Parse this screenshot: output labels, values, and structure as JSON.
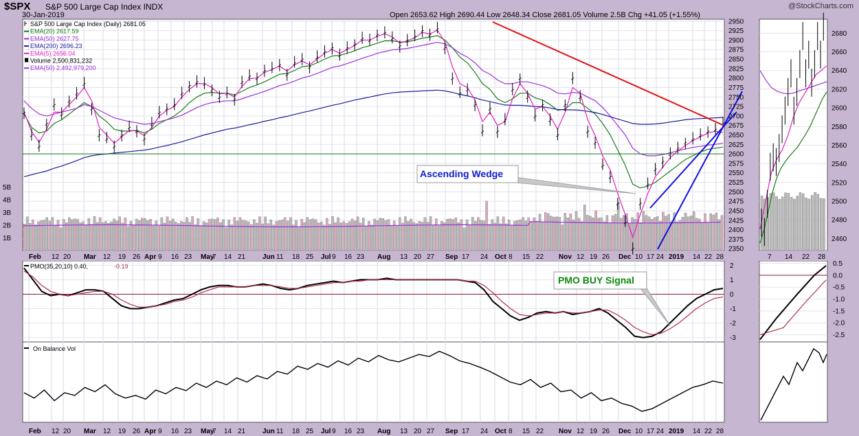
{
  "header": {
    "symbol": "$SPX",
    "name": "S&P 500 Large Cap Index",
    "exchange": "INDX",
    "date": "30-Jan-2019",
    "ohlc": "Open 2653.62  High 2690.44  Low 2648.34  Close 2681.05  Volume 2.5B  Chg +41.05 (+1.55%)",
    "credit": "@StockCharts.com"
  },
  "legends": {
    "price": [
      {
        "text": "S&P 500 Large Cap Index (Daily) 2681.05",
        "color": "#000000",
        "marker": "bar"
      },
      {
        "text": "EMA(20) 2617.59",
        "color": "#1a7a1a",
        "marker": "line"
      },
      {
        "text": "EMA(50) 2627.75",
        "color": "#9b30d9",
        "marker": "line"
      },
      {
        "text": "EMA(200) 2696.23",
        "color": "#1c1c9c",
        "marker": "line"
      },
      {
        "text": "EMA(5) 2656.04",
        "color": "#e020c0",
        "marker": "line"
      },
      {
        "text": "Volume 2,500,831,232",
        "color": "#000000",
        "marker": "block"
      },
      {
        "text": "EMA(50) 2,492,979,200",
        "color": "#9b30d9",
        "marker": "line"
      }
    ],
    "pmo_label": "PMO(35,20,10)",
    "pmo_value": "0.40,",
    "pmo_signal": "-0.19",
    "obv": "On Balance Vol"
  },
  "annotations": {
    "wedge": "Ascending Wedge",
    "pmo_buy": "PMO BUY Signal"
  },
  "chart_data": [
    {
      "type": "line",
      "panel": "price-daily",
      "title": "S&P 500 Large Cap Index (Daily) 2681.05",
      "ylim": [
        2345,
        2955
      ],
      "y_ticks": [
        2950,
        2925,
        2900,
        2875,
        2850,
        2825,
        2800,
        2775,
        2750,
        2725,
        2700,
        2675,
        2650,
        2625,
        2600,
        2575,
        2550,
        2525,
        2500,
        2475,
        2450,
        2425,
        2400,
        2375,
        2350
      ],
      "y_tick_labels": [
        "2950",
        "2925",
        "2900",
        "2875",
        "2850",
        "2825",
        "2800",
        "2775",
        "2750",
        "2725",
        "2700",
        "2675",
        "2650",
        "2625",
        "2600",
        "2575",
        "2550",
        "2525",
        "2500",
        "2475",
        "2450",
        "2425",
        "2400",
        "2375",
        "2350"
      ],
      "volume_ticks": [
        "5B",
        "4B",
        "3B",
        "2B",
        "1B"
      ],
      "volume_tick_values": [
        5,
        4,
        3,
        2,
        1
      ],
      "x_tick_labels": [
        "Feb",
        "12",
        "20",
        "Mar",
        "12",
        "19",
        "26",
        "Apr",
        "9",
        "16",
        "23",
        "May",
        "7",
        "14",
        "21",
        "Jun",
        "11",
        "18",
        "25",
        "Jul",
        "9",
        "16",
        "23",
        "Aug",
        "13",
        "20",
        "27",
        "Sep",
        "17",
        "24",
        "Oct",
        "8",
        "15",
        "22",
        "Nov",
        "12",
        "19",
        "26",
        "Dec",
        "10",
        "17",
        "24",
        "2019",
        "14",
        "22",
        "28"
      ],
      "x_tick_bold": [
        "Feb",
        "Mar",
        "Apr",
        "May",
        "Jun",
        "Jul",
        "Aug",
        "Sep",
        "Oct",
        "Nov",
        "Dec",
        "2019"
      ],
      "series": [
        {
          "name": "S&P 500 Large Cap Index (Daily)",
          "values": [
            2710,
            2650,
            2620,
            2680,
            2730,
            2705,
            2740,
            2760,
            2785,
            2720,
            2650,
            2640,
            2620,
            2650,
            2670,
            2660,
            2640,
            2680,
            2710,
            2720,
            2730,
            2760,
            2780,
            2790,
            2785,
            2770,
            2750,
            2760,
            2745,
            2790,
            2805,
            2800,
            2820,
            2825,
            2835,
            2810,
            2840,
            2850,
            2830,
            2855,
            2870,
            2880,
            2860,
            2880,
            2890,
            2905,
            2900,
            2915,
            2920,
            2905,
            2885,
            2900,
            2910,
            2925,
            2915,
            2930,
            2880,
            2800,
            2760,
            2770,
            2730,
            2660,
            2720,
            2660,
            2690,
            2770,
            2800,
            2750,
            2700,
            2730,
            2690,
            2650,
            2730,
            2800,
            2750,
            2660,
            2630,
            2570,
            2540,
            2470,
            2420,
            2351,
            2470,
            2520,
            2560,
            2580,
            2600,
            2615,
            2630,
            2640,
            2650,
            2660,
            2665,
            2681
          ]
        },
        {
          "name": "EMA(20)",
          "values": [
            2705,
            2670,
            2655,
            2660,
            2680,
            2690,
            2705,
            2720,
            2735,
            2725,
            2700,
            2685,
            2665,
            2660,
            2660,
            2662,
            2655,
            2665,
            2680,
            2690,
            2700,
            2715,
            2735,
            2750,
            2760,
            2762,
            2760,
            2760,
            2755,
            2765,
            2775,
            2782,
            2790,
            2800,
            2810,
            2812,
            2820,
            2830,
            2832,
            2840,
            2850,
            2858,
            2860,
            2865,
            2872,
            2880,
            2885,
            2892,
            2898,
            2898,
            2895,
            2895,
            2900,
            2905,
            2908,
            2912,
            2900,
            2880,
            2855,
            2840,
            2815,
            2785,
            2770,
            2745,
            2735,
            2745,
            2760,
            2760,
            2748,
            2742,
            2730,
            2715,
            2718,
            2735,
            2735,
            2720,
            2705,
            2680,
            2650,
            2610,
            2570,
            2520,
            2510,
            2515,
            2525,
            2540,
            2555,
            2570,
            2585,
            2595,
            2605,
            2612,
            2615,
            2618
          ]
        },
        {
          "name": "EMA(50)",
          "values": [
            2740,
            2720,
            2705,
            2700,
            2705,
            2710,
            2715,
            2720,
            2730,
            2725,
            2715,
            2705,
            2695,
            2690,
            2685,
            2682,
            2678,
            2680,
            2685,
            2690,
            2695,
            2702,
            2712,
            2722,
            2730,
            2735,
            2738,
            2740,
            2740,
            2745,
            2752,
            2758,
            2765,
            2772,
            2780,
            2785,
            2792,
            2800,
            2805,
            2812,
            2820,
            2828,
            2832,
            2838,
            2845,
            2852,
            2858,
            2865,
            2870,
            2874,
            2876,
            2878,
            2882,
            2886,
            2890,
            2894,
            2890,
            2880,
            2865,
            2855,
            2840,
            2820,
            2810,
            2795,
            2785,
            2785,
            2790,
            2790,
            2785,
            2780,
            2772,
            2760,
            2758,
            2762,
            2760,
            2750,
            2740,
            2722,
            2700,
            2675,
            2650,
            2615,
            2600,
            2595,
            2595,
            2598,
            2603,
            2608,
            2613,
            2617,
            2620,
            2623,
            2625,
            2628
          ]
        },
        {
          "name": "EMA(200)",
          "values": [
            2540,
            2545,
            2550,
            2555,
            2562,
            2568,
            2575,
            2582,
            2590,
            2595,
            2598,
            2600,
            2602,
            2604,
            2606,
            2608,
            2610,
            2613,
            2618,
            2622,
            2627,
            2632,
            2638,
            2644,
            2650,
            2655,
            2660,
            2665,
            2668,
            2672,
            2677,
            2681,
            2686,
            2690,
            2695,
            2699,
            2704,
            2709,
            2713,
            2718,
            2723,
            2728,
            2732,
            2737,
            2742,
            2746,
            2750,
            2754,
            2758,
            2761,
            2763,
            2764,
            2765,
            2766,
            2767,
            2768,
            2766,
            2762,
            2757,
            2753,
            2748,
            2742,
            2738,
            2733,
            2729,
            2728,
            2728,
            2727,
            2725,
            2724,
            2721,
            2717,
            2716,
            2716,
            2715,
            2712,
            2709,
            2704,
            2698,
            2692,
            2686,
            2680,
            2678,
            2678,
            2679,
            2681,
            2684,
            2687,
            2690,
            2692,
            2693,
            2694,
            2695,
            2696
          ]
        },
        {
          "name": "EMA(5)",
          "values": [
            2710,
            2660,
            2630,
            2665,
            2710,
            2710,
            2730,
            2750,
            2775,
            2740,
            2670,
            2650,
            2628,
            2645,
            2662,
            2660,
            2648,
            2670,
            2700,
            2715,
            2725,
            2750,
            2770,
            2785,
            2785,
            2775,
            2758,
            2760,
            2750,
            2778,
            2798,
            2800,
            2815,
            2822,
            2832,
            2818,
            2835,
            2845,
            2835,
            2850,
            2865,
            2875,
            2865,
            2875,
            2886,
            2900,
            2900,
            2910,
            2917,
            2908,
            2892,
            2898,
            2906,
            2920,
            2916,
            2926,
            2895,
            2830,
            2785,
            2775,
            2742,
            2685,
            2710,
            2675,
            2685,
            2745,
            2785,
            2760,
            2718,
            2725,
            2700,
            2665,
            2710,
            2775,
            2760,
            2690,
            2648,
            2595,
            2558,
            2495,
            2440,
            2380,
            2440,
            2495,
            2540,
            2565,
            2590,
            2608,
            2622,
            2635,
            2645,
            2655,
            2660,
            2656
          ]
        }
      ],
      "trendlines": [
        {
          "name": "resistance-line",
          "color": "#e01010",
          "points": [
            [
              0,
              0
            ],
            [
              1,
              1
            ]
          ]
        },
        {
          "name": "wedge-lower",
          "color": "#1010e0"
        },
        {
          "name": "wedge-upper",
          "color": "#1010e0"
        },
        {
          "name": "horizontal-2600",
          "color": "#1a7a1a",
          "y": 2600
        }
      ]
    },
    {
      "type": "line",
      "panel": "pmo-daily",
      "title": "PMO(35,20,10) 0.40, -0.19",
      "ylim": [
        -3.3,
        2.3
      ],
      "y_ticks": [
        2,
        1,
        0,
        -1,
        -2,
        -3
      ],
      "y_tick_labels": [
        "2",
        "1",
        "0",
        "-1",
        "-2",
        "-3"
      ],
      "series": [
        {
          "name": "PMO",
          "values": [
            1.8,
            1.0,
            0.2,
            -0.1,
            0.0,
            -0.1,
            0.1,
            0.3,
            0.3,
            0.2,
            -0.3,
            -0.8,
            -1.0,
            -1.0,
            -0.9,
            -0.8,
            -0.6,
            -0.4,
            -0.3,
            0.0,
            0.3,
            0.5,
            0.6,
            0.6,
            0.5,
            0.5,
            0.6,
            0.7,
            0.6,
            0.4,
            0.3,
            0.4,
            0.6,
            0.7,
            0.8,
            0.9,
            0.8,
            0.9,
            1.0,
            1.0,
            1.0,
            1.1,
            1.0,
            1.0,
            1.0,
            1.0,
            1.0,
            1.0,
            1.0,
            1.0,
            0.9,
            0.8,
            0.3,
            -0.5,
            -1.0,
            -1.5,
            -1.8,
            -1.6,
            -1.3,
            -1.2,
            -1.3,
            -1.2,
            -1.4,
            -1.3,
            -1.2,
            -1.0,
            -1.3,
            -1.8,
            -2.3,
            -2.9,
            -3.0,
            -2.9,
            -2.6,
            -2.0,
            -1.4,
            -0.8,
            -0.3,
            0.0,
            0.3,
            0.4
          ]
        },
        {
          "name": "Signal",
          "values": [
            1.6,
            1.2,
            0.6,
            0.2,
            0.0,
            -0.1,
            0.0,
            0.1,
            0.2,
            0.2,
            0.0,
            -0.4,
            -0.7,
            -0.9,
            -0.9,
            -0.8,
            -0.7,
            -0.5,
            -0.4,
            -0.2,
            0.1,
            0.3,
            0.5,
            0.5,
            0.5,
            0.5,
            0.6,
            0.6,
            0.6,
            0.5,
            0.4,
            0.4,
            0.5,
            0.6,
            0.7,
            0.8,
            0.8,
            0.9,
            0.9,
            1.0,
            1.0,
            1.0,
            1.0,
            1.0,
            1.0,
            1.0,
            1.0,
            1.0,
            1.0,
            1.0,
            0.9,
            0.9,
            0.6,
            0.1,
            -0.5,
            -1.0,
            -1.4,
            -1.5,
            -1.4,
            -1.3,
            -1.3,
            -1.2,
            -1.3,
            -1.3,
            -1.2,
            -1.1,
            -1.1,
            -1.4,
            -1.8,
            -2.3,
            -2.6,
            -2.8,
            -2.7,
            -2.4,
            -2.0,
            -1.5,
            -1.0,
            -0.6,
            -0.3,
            -0.19
          ]
        }
      ]
    },
    {
      "type": "line",
      "panel": "obv-daily",
      "title": "On Balance Vol",
      "x_tick_labels": [
        "Feb",
        "12",
        "20",
        "Mar",
        "12",
        "19",
        "26",
        "Apr",
        "9",
        "16",
        "23",
        "May",
        "7",
        "14",
        "21",
        "Jun",
        "11",
        "18",
        "25",
        "Jul",
        "9",
        "16",
        "23",
        "Aug",
        "13",
        "20",
        "27",
        "Sep",
        "17",
        "24",
        "Oct",
        "8",
        "15",
        "22",
        "Nov",
        "12",
        "19",
        "26",
        "Dec",
        "10",
        "17",
        "24",
        "2019",
        "14",
        "22",
        "28"
      ],
      "series": [
        {
          "name": "On Balance Vol",
          "values": [
            40,
            30,
            45,
            25,
            40,
            35,
            50,
            42,
            55,
            38,
            30,
            35,
            28,
            45,
            38,
            50,
            44,
            58,
            50,
            62,
            55,
            68,
            60,
            72,
            66,
            80,
            75,
            90,
            84,
            95,
            88,
            100,
            92,
            105,
            98,
            110,
            102,
            98,
            105,
            112,
            108,
            118,
            110,
            100,
            95,
            88,
            80,
            70,
            60,
            55,
            65,
            50,
            58,
            42,
            45,
            30,
            40,
            25,
            30,
            20,
            15,
            5,
            10,
            20,
            30,
            40,
            50,
            55,
            62,
            58
          ]
        }
      ]
    },
    {
      "type": "line",
      "panel": "price-weekly",
      "ylim": [
        2447,
        2695
      ],
      "y_ticks": [
        2680,
        2660,
        2640,
        2620,
        2600,
        2580,
        2560,
        2540,
        2520,
        2500,
        2480,
        2460
      ],
      "y_tick_labels": [
        "2680",
        "2660",
        "2640",
        "2620",
        "2600",
        "2580",
        "2560",
        "2540",
        "2520",
        "2500",
        "2480",
        "2460"
      ],
      "x_tick_labels": [
        "7",
        "14",
        "22",
        "28"
      ]
    },
    {
      "type": "line",
      "panel": "pmo-weekly",
      "ylim": [
        -2.8,
        0.6
      ],
      "y_ticks": [
        0.5,
        0.0,
        -0.5,
        -1.0,
        -1.5,
        -2.0,
        -2.5
      ],
      "y_tick_labels": [
        "0.5",
        "0.0",
        "-0.5",
        "-1.0",
        "-1.5",
        "-2.0",
        "-2.5"
      ]
    }
  ]
}
